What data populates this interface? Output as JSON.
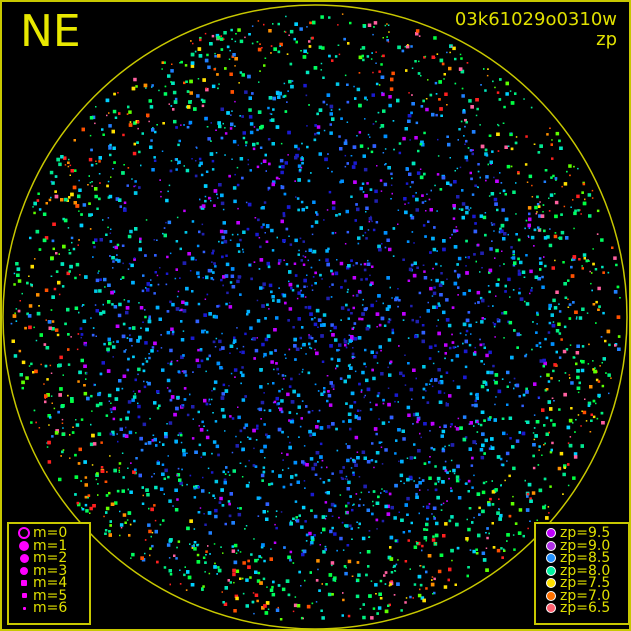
{
  "header": {
    "direction": "NE",
    "frame_id": "03k61029o0310w",
    "color_key": "zp"
  },
  "chart_data": {
    "type": "scatter",
    "title": "03k61029o0310w",
    "horizon_circle": true,
    "size_legend": {
      "placement": "bottom-left",
      "entries": [
        {
          "label": "m=0",
          "style": "ring"
        },
        {
          "label": "m=1"
        },
        {
          "label": "m=2"
        },
        {
          "label": "m=3"
        },
        {
          "label": "m=4"
        },
        {
          "label": "m=5"
        },
        {
          "label": "m=6"
        }
      ]
    },
    "color_legend": {
      "placement": "bottom-right",
      "entries": [
        {
          "label": "zp=9.5",
          "zp": 9.5,
          "color": "#c000ff"
        },
        {
          "label": "zp=9.0",
          "zp": 9.0,
          "color": "#b030e8"
        },
        {
          "label": "zp=8.5",
          "zp": 8.5,
          "color": "#2090ff"
        },
        {
          "label": "zp=8.0",
          "zp": 8.0,
          "color": "#00f0a0"
        },
        {
          "label": "zp=7.5",
          "zp": 7.5,
          "color": "#ffe000"
        },
        {
          "label": "zp=7.0",
          "zp": 7.0,
          "color": "#ff7000"
        },
        {
          "label": "zp=6.5",
          "zp": 6.5,
          "color": "#ff6070"
        }
      ]
    }
  },
  "colors": {
    "frame": "#c8c800",
    "text": "#e0e000",
    "marker": "#ff00ff"
  }
}
